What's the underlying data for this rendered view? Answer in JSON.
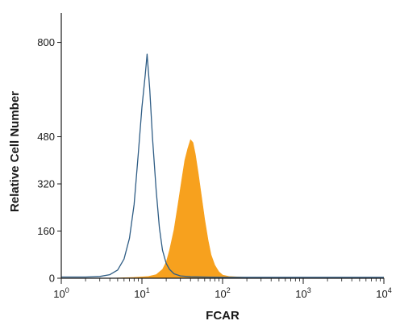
{
  "chart_data": {
    "type": "area",
    "title": "",
    "xlabel": "FCAR",
    "ylabel": "Relative Cell Number",
    "x_scale": "log",
    "xlim": [
      1,
      10000
    ],
    "ylim": [
      0,
      900
    ],
    "x_ticks": [
      {
        "base": "10",
        "exp": "0",
        "value": 1
      },
      {
        "base": "10",
        "exp": "1",
        "value": 10
      },
      {
        "base": "10",
        "exp": "2",
        "value": 100
      },
      {
        "base": "10",
        "exp": "3",
        "value": 1000
      },
      {
        "base": "10",
        "exp": "4",
        "value": 10000
      }
    ],
    "y_ticks": [
      {
        "label": "0",
        "value": 0
      },
      {
        "label": "160",
        "value": 160
      },
      {
        "label": "320",
        "value": 320
      },
      {
        "label": "480",
        "value": 480
      },
      {
        "label": "800",
        "value": 800
      }
    ],
    "grid": false,
    "series": [
      {
        "style": "outline",
        "color": "#2f5d85",
        "points": [
          [
            1,
            4
          ],
          [
            2,
            4
          ],
          [
            3,
            6
          ],
          [
            4,
            12
          ],
          [
            5,
            28
          ],
          [
            6,
            65
          ],
          [
            7,
            135
          ],
          [
            8,
            250
          ],
          [
            9,
            420
          ],
          [
            10,
            580
          ],
          [
            11,
            690
          ],
          [
            11.6,
            760
          ],
          [
            12.5,
            640
          ],
          [
            13.5,
            480
          ],
          [
            15,
            300
          ],
          [
            16.5,
            170
          ],
          [
            18,
            95
          ],
          [
            20,
            50
          ],
          [
            22,
            30
          ],
          [
            25,
            15
          ],
          [
            30,
            8
          ],
          [
            40,
            5
          ],
          [
            60,
            4
          ],
          [
            100,
            3
          ],
          [
            300,
            3
          ],
          [
            1000,
            3
          ],
          [
            10000,
            3
          ]
        ]
      },
      {
        "style": "filled",
        "color": "#f7a11e",
        "points": [
          [
            4,
            0
          ],
          [
            8,
            3
          ],
          [
            12,
            6
          ],
          [
            15,
            12
          ],
          [
            18,
            30
          ],
          [
            20,
            55
          ],
          [
            22,
            95
          ],
          [
            25,
            165
          ],
          [
            28,
            250
          ],
          [
            31,
            330
          ],
          [
            34,
            400
          ],
          [
            37,
            440
          ],
          [
            40,
            470
          ],
          [
            43,
            460
          ],
          [
            46,
            420
          ],
          [
            50,
            355
          ],
          [
            55,
            275
          ],
          [
            60,
            200
          ],
          [
            66,
            130
          ],
          [
            72,
            80
          ],
          [
            80,
            45
          ],
          [
            90,
            22
          ],
          [
            100,
            11
          ],
          [
            120,
            6
          ],
          [
            200,
            3
          ],
          [
            400,
            2
          ],
          [
            2000,
            1
          ],
          [
            10000,
            1
          ]
        ]
      }
    ]
  }
}
